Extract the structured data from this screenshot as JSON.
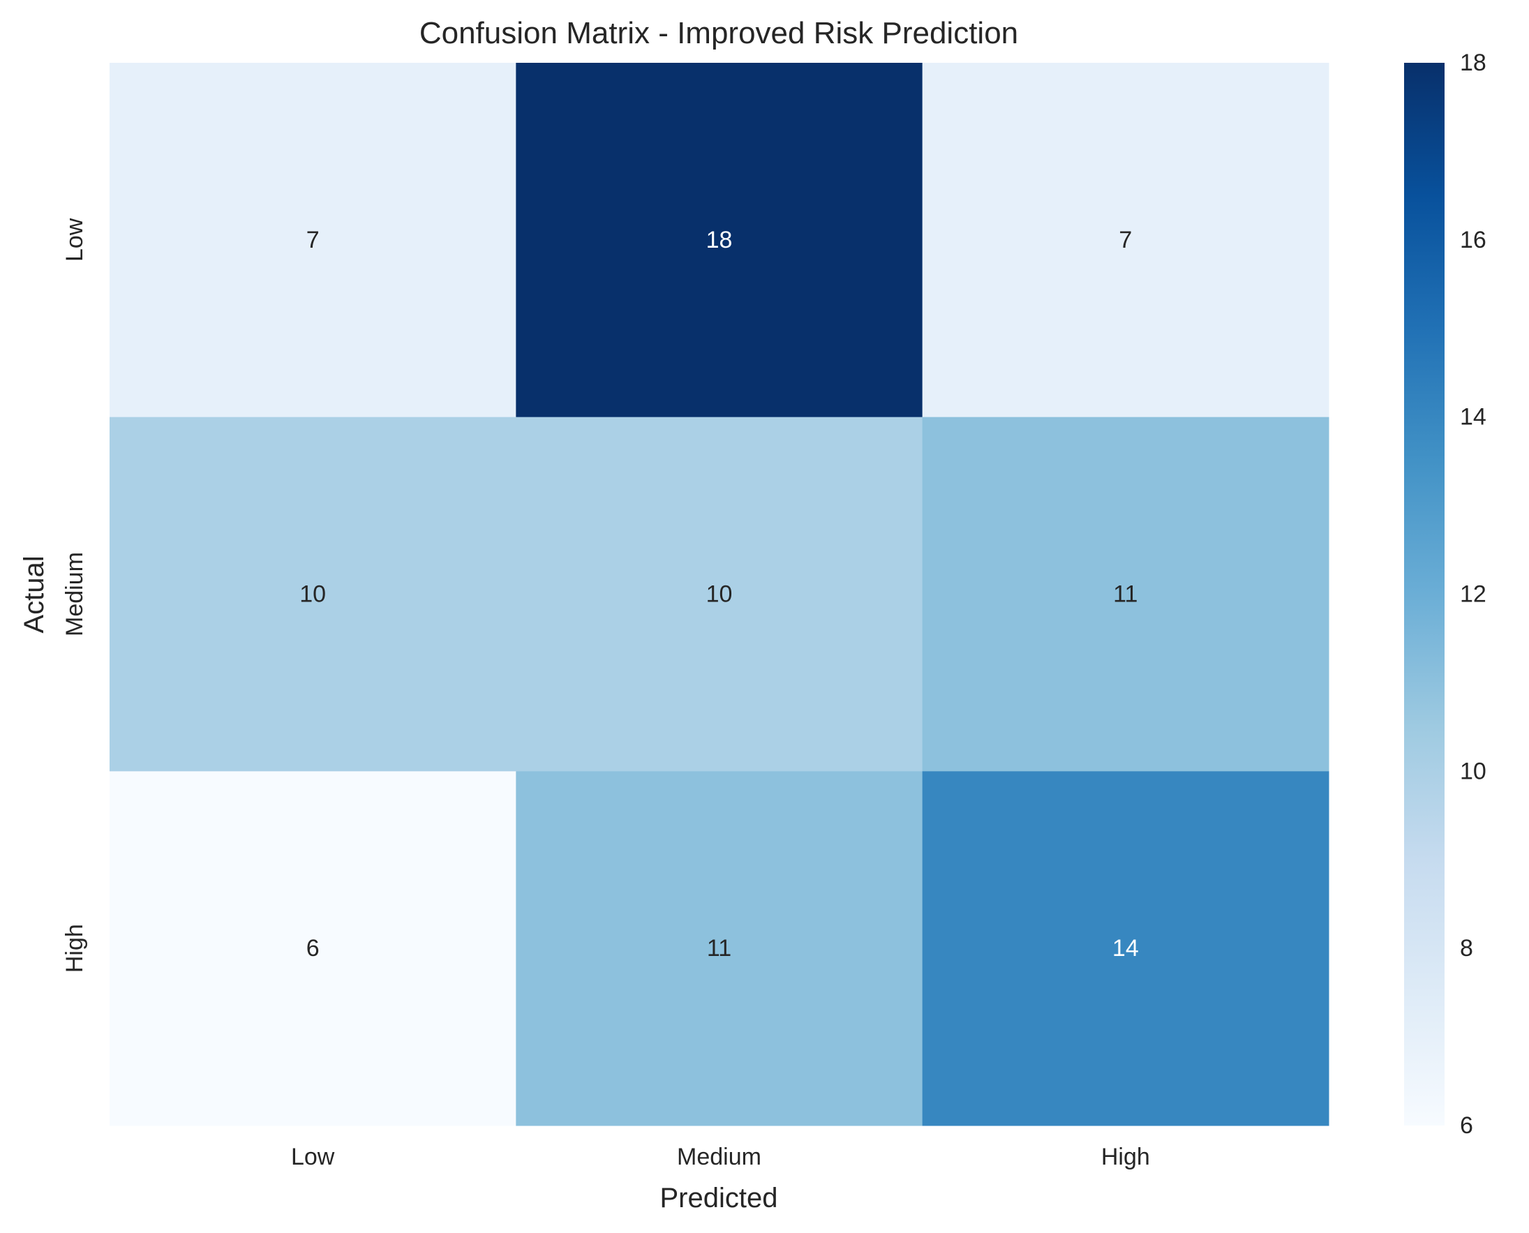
{
  "chart_data": {
    "type": "heatmap",
    "title": "Confusion Matrix - Improved Risk Prediction",
    "xlabel": "Predicted",
    "ylabel": "Actual",
    "x_categories": [
      "Low",
      "Medium",
      "High"
    ],
    "y_categories": [
      "Low",
      "Medium",
      "High"
    ],
    "values": [
      [
        7,
        18,
        7
      ],
      [
        10,
        10,
        11
      ],
      [
        6,
        11,
        14
      ]
    ],
    "colormap": "Blues",
    "color_range": [
      6,
      18
    ],
    "colorbar_ticks": [
      6,
      8,
      10,
      12,
      14,
      16,
      18
    ],
    "annotated": true,
    "grid": false
  }
}
